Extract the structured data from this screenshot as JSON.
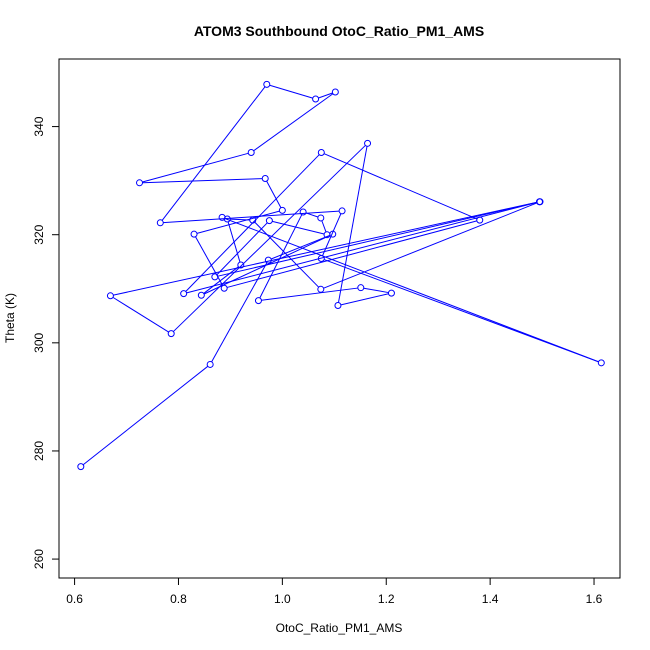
{
  "chart_data": {
    "type": "line",
    "title": "ATOM3 Southbound OtoC_Ratio_PM1_AMS",
    "xlabel": "OtoC_Ratio_PM1_AMS",
    "ylabel": "Theta (K)",
    "xlim": [
      0.57,
      1.65
    ],
    "ylim": [
      256.5,
      352.5
    ],
    "xticks": [
      0.6,
      0.8,
      1.0,
      1.2,
      1.4,
      1.6
    ],
    "xtick_labels": [
      "0.6",
      "0.8",
      "1.0",
      "1.2",
      "1.4",
      "1.6"
    ],
    "yticks": [
      260,
      280,
      300,
      320,
      340
    ],
    "ytick_labels": [
      "260",
      "280",
      "300",
      "320",
      "340"
    ],
    "grid": false,
    "markers": "open-circle",
    "series_color": "#0000ff",
    "series": [
      {
        "x": [
          0.612,
          0.861,
          0.973,
          1.097,
          0.844,
          0.92,
          0.894,
          0.943,
          1.074,
          1.496,
          0.87,
          0.975,
          1.086,
          1.074,
          1.04,
          0.954,
          1.151,
          1.21,
          1.107,
          1.164,
          0.786,
          0.669,
          1.495,
          0.81,
          1.075,
          1.38,
          0.888,
          0.83,
          1.0,
          0.967,
          0.725,
          0.94,
          1.102,
          1.064,
          0.97,
          0.765,
          1.115,
          1.075,
          1.614,
          0.884
        ],
        "y": [
          277.1,
          296.0,
          315.3,
          320.1,
          308.8,
          314.4,
          322.9,
          322.7,
          309.9,
          326.1,
          312.2,
          322.6,
          320.0,
          323.1,
          324.2,
          307.8,
          310.2,
          309.2,
          306.9,
          336.9,
          301.7,
          308.7,
          326.1,
          309.1,
          335.2,
          322.7,
          310.1,
          320.1,
          324.5,
          330.4,
          329.6,
          335.2,
          346.4,
          345.1,
          347.8,
          322.2,
          324.4,
          315.6,
          296.3,
          323.2
        ]
      }
    ]
  }
}
